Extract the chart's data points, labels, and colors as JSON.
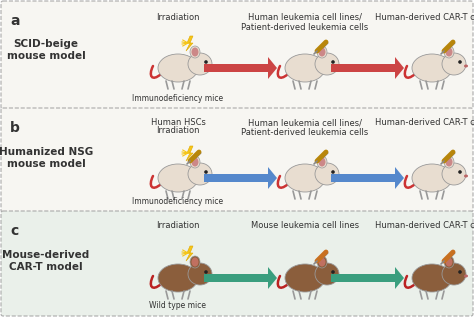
{
  "panel_a": {
    "label": "a",
    "title": "SCID-beige\nmouse model",
    "background": "#f7f6f2",
    "arrow_color": "#cc4444",
    "mice_label": "Immunodeficiency mice",
    "step_labels": [
      "Irradiation",
      "Human leukemia cell lines/\nPatient-derived leukemia cells",
      "Human-derived CAR-T cells"
    ],
    "mouse_color": "#e8ddd0",
    "mouse_ear_color": "#cc8888",
    "tail_color": "#cc3333",
    "mouse_type": "white"
  },
  "panel_b": {
    "label": "b",
    "title": "Humanized NSG\nmouse model",
    "background": "#f7f6f2",
    "arrow_color": "#5588cc",
    "mice_label": "Immunodeficiency mice",
    "step_label_1a": "Human HSCs",
    "step_label_1b": "Irradiation",
    "step_labels": [
      "",
      "Human leukemia cell lines/\nPatient-derived leukemia cells",
      "Human-derived CAR-T cells"
    ],
    "mouse_color": "#e8ddd0",
    "mouse_ear_color": "#cc8888",
    "tail_color": "#cc3333",
    "mouse_type": "white"
  },
  "panel_c": {
    "label": "c",
    "title": "Mouse-derived\nCAR-T model",
    "background": "#eaf0ea",
    "arrow_color": "#3a9e7e",
    "mice_label": "Wild type mice",
    "step_labels": [
      "Irradiation",
      "Mouse leukemia cell lines",
      "Human-derived CAR-T cells"
    ],
    "mouse_color": "#8b5e3c",
    "mouse_ear_color": "#c07060",
    "tail_color": "#bb2222",
    "mouse_type": "brown"
  },
  "border_color": "#aaaaaa",
  "text_color": "#333333",
  "label_fontsize": 9,
  "title_fontsize": 7.5,
  "step_fontsize": 6.0,
  "sub_fontsize": 5.5
}
